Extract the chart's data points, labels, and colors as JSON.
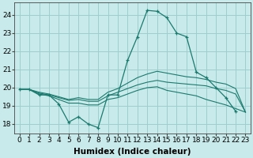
{
  "xlabel": "Humidex (Indice chaleur)",
  "x": [
    0,
    1,
    2,
    3,
    4,
    5,
    6,
    7,
    8,
    9,
    10,
    11,
    12,
    13,
    14,
    15,
    16,
    17,
    18,
    19,
    20,
    21,
    22,
    23
  ],
  "line1": [
    19.9,
    19.9,
    19.6,
    19.6,
    19.1,
    18.1,
    18.4,
    18.0,
    17.8,
    19.6,
    19.6,
    21.5,
    22.8,
    24.25,
    24.2,
    23.85,
    23.0,
    22.8,
    20.85,
    20.55,
    20.0,
    19.45,
    18.7,
    null
  ],
  "line2": [
    19.9,
    19.9,
    19.65,
    19.55,
    19.35,
    19.15,
    19.15,
    19.05,
    19.05,
    19.35,
    19.45,
    19.65,
    19.85,
    20.0,
    20.05,
    19.85,
    19.75,
    19.65,
    19.55,
    19.35,
    19.2,
    19.05,
    18.85,
    18.65
  ],
  "line3": [
    19.9,
    19.9,
    19.7,
    19.6,
    19.45,
    19.3,
    19.35,
    19.25,
    19.25,
    19.55,
    19.75,
    19.95,
    20.15,
    20.3,
    20.4,
    20.3,
    20.25,
    20.2,
    20.15,
    20.1,
    19.95,
    19.85,
    19.65,
    18.65
  ],
  "line4": [
    19.9,
    19.9,
    19.75,
    19.65,
    19.5,
    19.35,
    19.45,
    19.35,
    19.35,
    19.75,
    19.95,
    20.25,
    20.55,
    20.75,
    20.9,
    20.8,
    20.7,
    20.6,
    20.55,
    20.45,
    20.3,
    20.2,
    19.95,
    18.65
  ],
  "line_color": "#1a7a6e",
  "bg_color": "#c8eaea",
  "grid_color": "#9ecece",
  "ylim": [
    17.5,
    24.7
  ],
  "yticks": [
    18,
    19,
    20,
    21,
    22,
    23,
    24
  ],
  "xticks": [
    0,
    1,
    2,
    3,
    4,
    5,
    6,
    7,
    8,
    9,
    10,
    11,
    12,
    13,
    14,
    15,
    16,
    17,
    18,
    19,
    20,
    21,
    22,
    23
  ],
  "tick_fontsize": 6.5,
  "label_fontsize": 7.5
}
